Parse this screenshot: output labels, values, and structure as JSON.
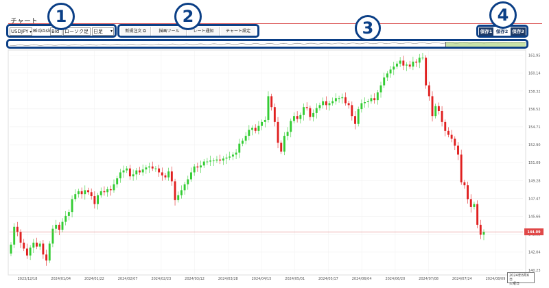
{
  "page": {
    "title": "チャート"
  },
  "controls": {
    "symbol": "USDJPY",
    "bid_ask_label": "Bid/Ask",
    "price_side": "Bid",
    "chart_type": "ローソク足",
    "timeframe": "日足"
  },
  "toolbar": {
    "new_order": "新規注文",
    "drawing_tools": "描画ツール",
    "rate_alert": "レート通知",
    "chart_settings": "チャート設定"
  },
  "saves": {
    "save1": "保存1",
    "save2": "保存2",
    "save3": "保存3"
  },
  "callouts": [
    "1",
    "2",
    "3",
    "4"
  ],
  "colors": {
    "accent": "#0b3f86",
    "up": "#33cc33",
    "down": "#e02020",
    "current_price_bg": "#e04848",
    "navigator_fill": "#c9e3a8"
  },
  "current_price": "144.09",
  "date_tooltip": {
    "line1": "2024年8月6日",
    "line2": "火曜日"
  },
  "chart_data": {
    "type": "candlestick",
    "y_ticks": [
      "161.95",
      "160.14",
      "158.32",
      "156.52",
      "154.71",
      "152.90",
      "151.09",
      "149.28",
      "147.47",
      "145.66",
      "143.85",
      "142.04",
      "140.23"
    ],
    "x_ticks": [
      "2023/12/18",
      "2024/01/04",
      "2024/01/22",
      "2024/02/07",
      "2024/02/23",
      "2024/03/12",
      "2024/03/28",
      "2024/04/15",
      "2024/05/01",
      "2024/05/17",
      "2024/06/04",
      "2024/06/20",
      "2024/07/08",
      "2024/07/24",
      "2024/08/09"
    ],
    "ylim": [
      139.8,
      162.4
    ],
    "closes": [
      142.8,
      144.6,
      144.1,
      143.0,
      142.4,
      141.7,
      142.5,
      143.0,
      142.6,
      142.9,
      141.8,
      141.2,
      142.9,
      144.4,
      144.8,
      144.3,
      145.1,
      145.7,
      146.1,
      147.4,
      147.9,
      148.2,
      147.9,
      148.3,
      148.1,
      147.7,
      146.9,
      147.8,
      148.2,
      148.1,
      148.4,
      148.3,
      148.9,
      149.5,
      150.1,
      150.3,
      150.5,
      149.7,
      149.9,
      150.3,
      150.1,
      150.4,
      150.6,
      150.7,
      150.5,
      150.5,
      150.1,
      149.8,
      149.6,
      150.2,
      149.2,
      147.3,
      147.8,
      148.3,
      148.9,
      149.4,
      150.1,
      150.7,
      150.6,
      150.8,
      151.2,
      151.2,
      151.3,
      151.3,
      151.4,
      151.3,
      151.5,
      151.6,
      151.7,
      151.9,
      152.1,
      153.0,
      153.3,
      153.8,
      154.4,
      154.6,
      154.3,
      154.8,
      155.2,
      155.4,
      157.8,
      156.7,
      155.2,
      153.1,
      152.2,
      153.8,
      154.2,
      155.3,
      155.8,
      155.5,
      155.9,
      156.7,
      156.6,
      155.7,
      156.1,
      156.6,
      156.9,
      157.3,
      156.9,
      157.1,
      157.3,
      157.6,
      157.6,
      157.7,
      157.1,
      156.9,
      155.8,
      155.0,
      156.5,
      157.1,
      157.2,
      157.3,
      157.6,
      157.4,
      158.2,
      158.9,
      159.7,
      160.1,
      160.5,
      160.8,
      161.1,
      161.4,
      160.9,
      161.0,
      160.8,
      161.3,
      161.2,
      161.7,
      161.7,
      158.9,
      157.8,
      155.8,
      156.8,
      156.3,
      155.2,
      154.3,
      153.9,
      153.5,
      152.8,
      151.9,
      149.1,
      148.8,
      147.4,
      146.6,
      146.9,
      144.8,
      143.8,
      144.1
    ]
  }
}
